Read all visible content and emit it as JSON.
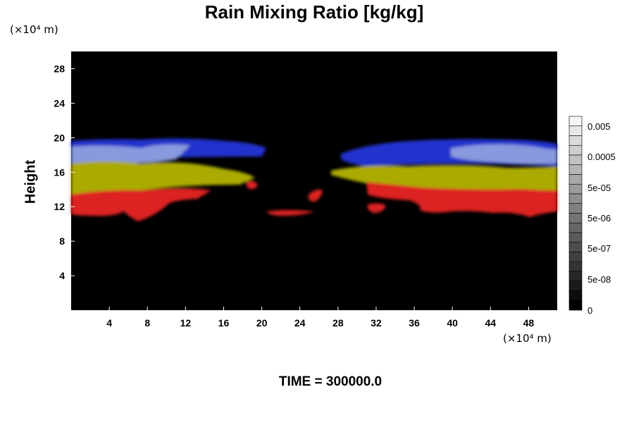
{
  "chart_data": {
    "type": "heatmap",
    "title": "Rain Mixing Ratio [kg/kg]",
    "ylabel": "Height",
    "y_unit": "(×10⁴ m)",
    "x_unit": "(×10⁴ m)",
    "x_ticks": [
      4,
      8,
      12,
      16,
      20,
      24,
      28,
      32,
      36,
      40,
      44,
      48
    ],
    "y_ticks": [
      4,
      8,
      12,
      16,
      20,
      24,
      28
    ],
    "xlim": [
      0,
      51
    ],
    "ylim": [
      0,
      30
    ],
    "colorbar": {
      "ticks": [
        "0.005",
        "0.0005",
        "5e-05",
        "5e-06",
        "5e-07",
        "5e-08",
        "0"
      ],
      "levels": 20
    },
    "layers": [
      {
        "color": "#dd2222",
        "name": "red"
      },
      {
        "color": "#aaaa00",
        "name": "yellow"
      },
      {
        "color": "#8899dd",
        "name": "light-blue"
      },
      {
        "color": "#2233cc",
        "name": "blue"
      }
    ],
    "footer": "TIME = 300000.0"
  }
}
